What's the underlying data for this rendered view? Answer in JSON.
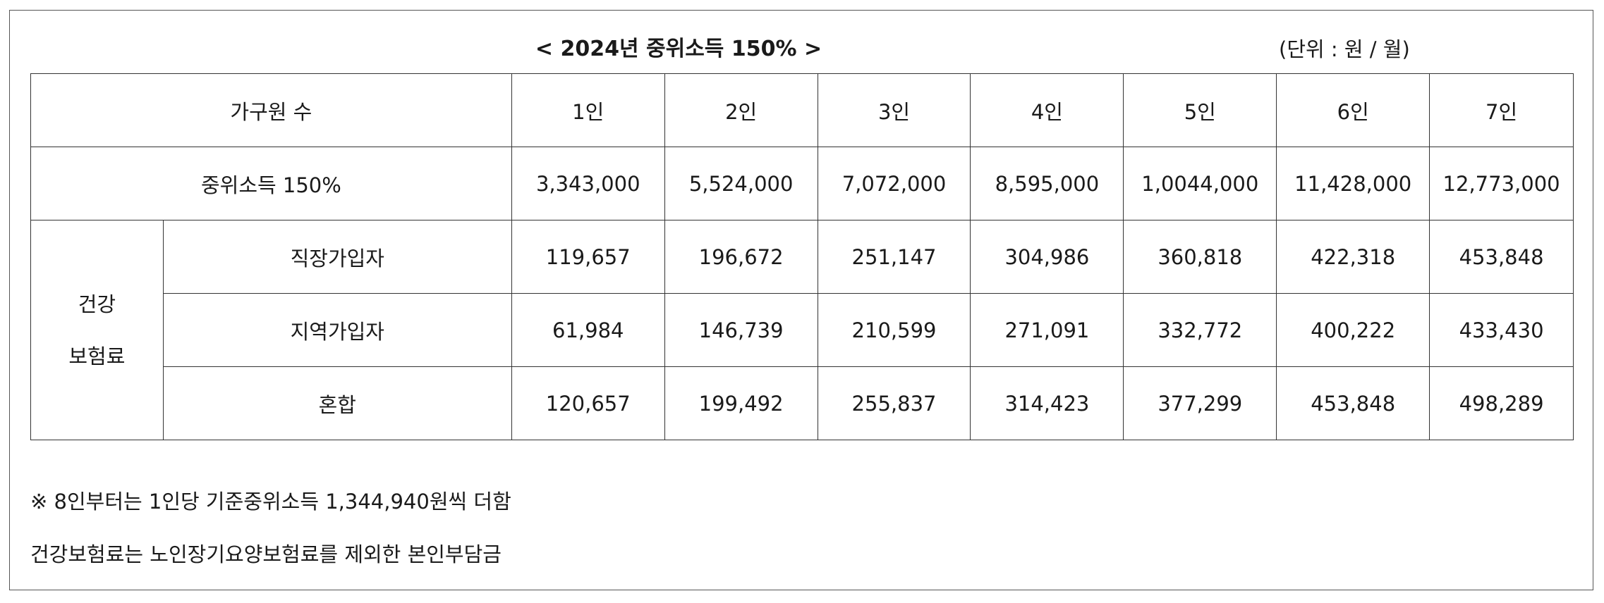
{
  "title": "< 2024년 중위소득 150% >",
  "unit": "(단위 : 원 / 월)",
  "table": {
    "header_label": "가구원 수",
    "columns": [
      "1인",
      "2인",
      "3인",
      "4인",
      "5인",
      "6인",
      "7인"
    ],
    "median_income": {
      "label": "중위소득 150%",
      "values": [
        "3,343,000",
        "5,524,000",
        "7,072,000",
        "8,595,000",
        "1,0044,000",
        "11,428,000",
        "12,773,000"
      ]
    },
    "health_insurance": {
      "label_line1": "건강",
      "label_line2": "보험료",
      "rows": [
        {
          "label": "직장가입자",
          "values": [
            "119,657",
            "196,672",
            "251,147",
            "304,986",
            "360,818",
            "422,318",
            "453,848"
          ]
        },
        {
          "label": "지역가입자",
          "values": [
            "61,984",
            "146,739",
            "210,599",
            "271,091",
            "332,772",
            "400,222",
            "433,430"
          ]
        },
        {
          "label": "혼합",
          "values": [
            "120,657",
            "199,492",
            "255,837",
            "314,423",
            "377,299",
            "453,848",
            "498,289"
          ]
        }
      ]
    }
  },
  "notes": [
    "※ 8인부터는 1인당 기준중위소득 1,344,940원씩 더함",
    "건강보험료는 노인장기요양보험료를 제외한 본인부담금"
  ]
}
